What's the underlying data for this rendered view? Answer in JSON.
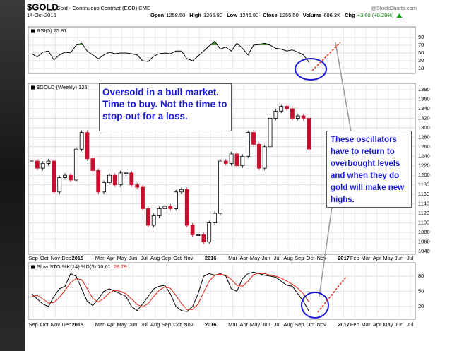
{
  "header": {
    "symbol": "$GOLD",
    "description": "Gold - Continuous Contract (EOD) CME",
    "date": "14-Oct-2016",
    "source": "@StockCharts.com",
    "stats": [
      {
        "label": "Open",
        "value": "1258.50"
      },
      {
        "label": "High",
        "value": "1266.80"
      },
      {
        "label": "Low",
        "value": "1246.90"
      },
      {
        "label": "Close",
        "value": "1255.50"
      },
      {
        "label": "Volume",
        "value": "686.3K"
      },
      {
        "label": "Chg",
        "value": "+3.60 (+0.29%)"
      }
    ]
  },
  "x_labels": [
    "Sep",
    "Oct",
    "Nov",
    "Dec",
    "2015",
    null,
    "Mar",
    "Apr",
    "May",
    "Jun",
    "Jul",
    "Aug",
    "Sep",
    "Oct",
    "Nov",
    null,
    "2016",
    null,
    "Mar",
    "Apr",
    "May",
    "Jun",
    "Jul",
    "Aug",
    "Sep",
    "Oct",
    "Nov",
    null,
    "2017",
    "Feb",
    "Mar",
    "Apr",
    "May",
    "Jun",
    "Jul"
  ],
  "chart_data": [
    {
      "type": "line",
      "legend": "RSI(5)",
      "ylim": [
        0,
        100
      ],
      "yticks": [
        10,
        30,
        50,
        70,
        90
      ],
      "grid": true,
      "fill_above": 70,
      "fill_above_color": "#4f8a3c",
      "fill_below": 30,
      "fill_below_color": "#8b2a1a",
      "series": [
        {
          "color": "#000000",
          "values": [
            48,
            40,
            52,
            55,
            32,
            45,
            52,
            50,
            70,
            75,
            55,
            45,
            35,
            45,
            52,
            48,
            50,
            50,
            48,
            45,
            30,
            28,
            42,
            48,
            50,
            48,
            55,
            55,
            35,
            30,
            42,
            55,
            68,
            80,
            60,
            65,
            55,
            75,
            62,
            45,
            70,
            72,
            75,
            70,
            62,
            60,
            55,
            58,
            52,
            45,
            25.81
          ]
        }
      ]
    },
    {
      "type": "candlestick",
      "legend": "$GOLD (Weekly) 125",
      "ylim": [
        1040,
        1380
      ],
      "yticks": [
        1040,
        1060,
        1080,
        1100,
        1120,
        1140,
        1160,
        1180,
        1200,
        1220,
        1240,
        1260,
        1280,
        1300,
        1320,
        1340,
        1360,
        1380
      ],
      "grid": true,
      "up_color": "#000000",
      "down_color": "#c8102e",
      "values": [
        1230,
        1215,
        1225,
        1230,
        1165,
        1195,
        1200,
        1190,
        1255,
        1290,
        1235,
        1210,
        1165,
        1185,
        1200,
        1180,
        1205,
        1205,
        1180,
        1175,
        1130,
        1095,
        1115,
        1130,
        1135,
        1130,
        1165,
        1170,
        1095,
        1075,
        1075,
        1060,
        1100,
        1120,
        1230,
        1225,
        1245,
        1220,
        1240,
        1290,
        1265,
        1215,
        1260,
        1320,
        1335,
        1345,
        1340,
        1320,
        1325,
        1320,
        1255
      ]
    },
    {
      "type": "line",
      "legend": "Slow STO %K(14) %D(3)",
      "ylim": [
        0,
        100
      ],
      "yticks": [
        20,
        50,
        80
      ],
      "grid": true,
      "series": [
        {
          "color": "#000000",
          "values": [
            45,
            35,
            25,
            20,
            40,
            55,
            60,
            85,
            80,
            55,
            30,
            22,
            35,
            50,
            55,
            50,
            45,
            40,
            20,
            12,
            25,
            40,
            55,
            60,
            62,
            45,
            20,
            12,
            10,
            20,
            45,
            80,
            85,
            82,
            85,
            80,
            55,
            50,
            75,
            85,
            88,
            85,
            82,
            80,
            78,
            70,
            62,
            60,
            45,
            30,
            10.61
          ]
        },
        {
          "color": "#e8200c",
          "values": [
            40,
            42,
            35,
            27,
            28,
            38,
            52,
            67,
            75,
            73,
            55,
            36,
            29,
            36,
            47,
            52,
            50,
            45,
            35,
            24,
            19,
            26,
            40,
            52,
            59,
            56,
            42,
            26,
            14,
            14,
            25,
            48,
            70,
            82,
            84,
            82,
            73,
            62,
            60,
            70,
            83,
            86,
            85,
            82,
            80,
            76,
            70,
            64,
            56,
            45,
            28.79
          ]
        }
      ]
    }
  ],
  "annotations": [
    {
      "text": "Oversold in a bull market. Time to buy. Not the time to stop out for a loss."
    },
    {
      "text": "These oscillators have to return to overbought levels and when they do gold will make new highs."
    }
  ]
}
